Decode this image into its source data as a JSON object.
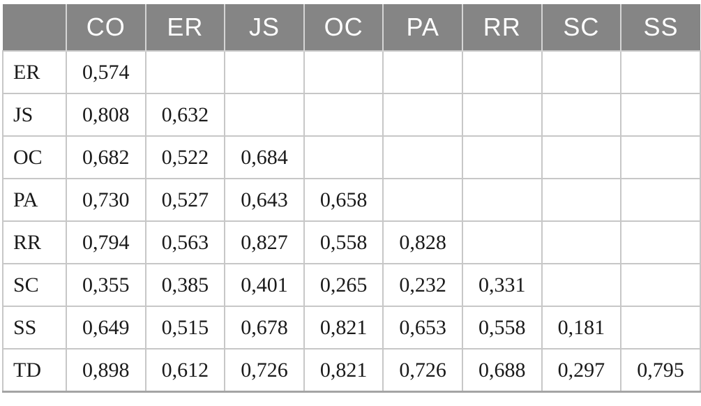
{
  "table": {
    "columns": [
      "",
      "CO",
      "ER",
      "JS",
      "OC",
      "PA",
      "RR",
      "SC",
      "SS"
    ],
    "rows": [
      {
        "label": "ER",
        "values": [
          "0,574",
          "",
          "",
          "",
          "",
          "",
          "",
          ""
        ]
      },
      {
        "label": "JS",
        "values": [
          "0,808",
          "0,632",
          "",
          "",
          "",
          "",
          "",
          ""
        ]
      },
      {
        "label": "OC",
        "values": [
          "0,682",
          "0,522",
          "0,684",
          "",
          "",
          "",
          "",
          ""
        ]
      },
      {
        "label": "PA",
        "values": [
          "0,730",
          "0,527",
          "0,643",
          "0,658",
          "",
          "",
          "",
          ""
        ]
      },
      {
        "label": "RR",
        "values": [
          "0,794",
          "0,563",
          "0,827",
          "0,558",
          "0,828",
          "",
          "",
          ""
        ]
      },
      {
        "label": "SC",
        "values": [
          "0,355",
          "0,385",
          "0,401",
          "0,265",
          "0,232",
          "0,331",
          "",
          ""
        ]
      },
      {
        "label": "SS",
        "values": [
          "0,649",
          "0,515",
          "0,678",
          "0,821",
          "0,653",
          "0,558",
          "0,181",
          ""
        ]
      },
      {
        "label": "TD",
        "values": [
          "0,898",
          "0,612",
          "0,726",
          "0,821",
          "0,726",
          "0,688",
          "0,297",
          "0,795"
        ]
      }
    ]
  },
  "colors": {
    "header_bg": "#858585",
    "header_text": "#ffffff",
    "header_divider": "#d5d5d5",
    "body_border": "#c7c7c7",
    "bottom_border": "#a4a4a4",
    "cell_text": "#1a1a1a"
  }
}
